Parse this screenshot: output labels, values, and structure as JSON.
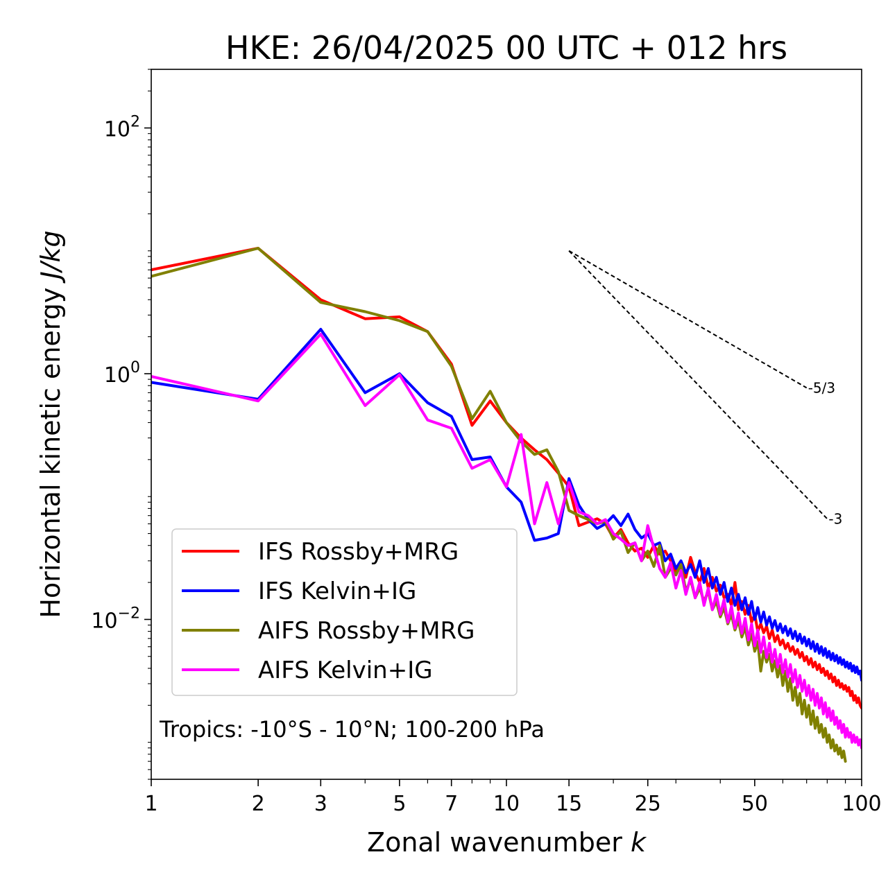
{
  "chart_data": {
    "type": "line",
    "title": "HKE: 26/04/2025 00 UTC + 012 hrs",
    "xlabel": "Zonal wavenumber",
    "xlabel_var": "k",
    "ylabel": "Horizontal kinetic energy",
    "ylabel_unit": "J/kg",
    "xscale": "log",
    "yscale": "log",
    "xlim": [
      1,
      100
    ],
    "ylim": [
      0.0005,
      300
    ],
    "x_ticks": [
      1,
      2,
      3,
      5,
      7,
      10,
      15,
      25,
      50,
      100
    ],
    "x_tick_labels": [
      "1",
      "2",
      "3",
      "5",
      "7",
      "10",
      "15",
      "25",
      "50",
      "100"
    ],
    "y_ticks": [
      {
        "value": 0.01,
        "base": "10",
        "exp": "−2"
      },
      {
        "value": 1,
        "base": "10",
        "exp": "0"
      },
      {
        "value": 100,
        "base": "10",
        "exp": "2"
      }
    ],
    "grid": false,
    "legend_position": "lower-left",
    "annotation": "Tropics: -10°S - 10°N; 100-200 hPa",
    "reference_lines": [
      {
        "label": "-5/3",
        "slope": -1.6667,
        "x0": 15,
        "y0": 10.0,
        "x1": 70
      },
      {
        "label": "-3",
        "slope": -3,
        "x0": 15,
        "y0": 10.0,
        "x1": 80
      }
    ],
    "series": [
      {
        "name": "IFS Rossby+MRG",
        "color": "#ff0000",
        "x": [
          1,
          2,
          3,
          4,
          5,
          6,
          7,
          8,
          9,
          10,
          11,
          12,
          13,
          14,
          15,
          16,
          17,
          18,
          19,
          20,
          21,
          22,
          23,
          24,
          25,
          26,
          27,
          28,
          29,
          30,
          31,
          32,
          33,
          34,
          35,
          36,
          37,
          38,
          39,
          40,
          41,
          42,
          43,
          44,
          45,
          46,
          47,
          48,
          49,
          50,
          51,
          52,
          53,
          54,
          55,
          56,
          57,
          58,
          59,
          60,
          61,
          62,
          63,
          64,
          65,
          66,
          67,
          68,
          69,
          70,
          71,
          72,
          73,
          74,
          75,
          76,
          77,
          78,
          79,
          80,
          81,
          82,
          83,
          84,
          85,
          86,
          87,
          88,
          89,
          90,
          91,
          92,
          93,
          94,
          95,
          96,
          97,
          98,
          99,
          100
        ],
        "y": [
          7.0,
          10.5,
          4.0,
          2.8,
          2.9,
          2.2,
          1.2,
          0.38,
          0.6,
          0.4,
          0.3,
          0.24,
          0.2,
          0.155,
          0.12,
          0.058,
          0.062,
          0.066,
          0.06,
          0.046,
          0.054,
          0.042,
          0.036,
          0.038,
          0.032,
          0.04,
          0.034,
          0.036,
          0.03,
          0.024,
          0.028,
          0.022,
          0.032,
          0.024,
          0.02,
          0.026,
          0.018,
          0.022,
          0.017,
          0.019,
          0.015,
          0.016,
          0.013,
          0.02,
          0.012,
          0.014,
          0.011,
          0.013,
          0.0095,
          0.011,
          0.008,
          0.0092,
          0.0078,
          0.0088,
          0.007,
          0.0082,
          0.0066,
          0.0074,
          0.0062,
          0.0068,
          0.0058,
          0.0064,
          0.0055,
          0.006,
          0.0052,
          0.0057,
          0.0049,
          0.0054,
          0.0046,
          0.005,
          0.0043,
          0.0048,
          0.0041,
          0.0045,
          0.0039,
          0.0043,
          0.0037,
          0.004,
          0.0035,
          0.0038,
          0.0033,
          0.0036,
          0.0031,
          0.0034,
          0.0029,
          0.0032,
          0.0028,
          0.003,
          0.0027,
          0.0029,
          0.0026,
          0.0028,
          0.0024,
          0.0026,
          0.0022,
          0.0024,
          0.0021,
          0.0023,
          0.002,
          0.0019
        ]
      },
      {
        "name": "IFS Kelvin+IG",
        "color": "#0000ff",
        "x": [
          1,
          2,
          3,
          4,
          5,
          6,
          7,
          8,
          9,
          10,
          11,
          12,
          13,
          14,
          15,
          16,
          17,
          18,
          19,
          20,
          21,
          22,
          23,
          24,
          25,
          26,
          27,
          28,
          29,
          30,
          31,
          32,
          33,
          34,
          35,
          36,
          37,
          38,
          39,
          40,
          41,
          42,
          43,
          44,
          45,
          46,
          47,
          48,
          49,
          50,
          51,
          52,
          53,
          54,
          55,
          56,
          57,
          58,
          59,
          60,
          61,
          62,
          63,
          64,
          65,
          66,
          67,
          68,
          69,
          70,
          71,
          72,
          73,
          74,
          75,
          76,
          77,
          78,
          79,
          80,
          81,
          82,
          83,
          84,
          85,
          86,
          87,
          88,
          89,
          90,
          91,
          92,
          93,
          94,
          95,
          96,
          97,
          98,
          99,
          100
        ],
        "y": [
          0.85,
          0.62,
          2.3,
          0.7,
          1.0,
          0.58,
          0.45,
          0.2,
          0.21,
          0.12,
          0.09,
          0.044,
          0.046,
          0.05,
          0.14,
          0.085,
          0.065,
          0.055,
          0.06,
          0.07,
          0.058,
          0.072,
          0.054,
          0.046,
          0.05,
          0.04,
          0.042,
          0.03,
          0.034,
          0.026,
          0.03,
          0.024,
          0.028,
          0.022,
          0.03,
          0.02,
          0.026,
          0.018,
          0.022,
          0.016,
          0.02,
          0.014,
          0.018,
          0.013,
          0.016,
          0.012,
          0.015,
          0.011,
          0.014,
          0.01,
          0.0125,
          0.0095,
          0.0115,
          0.009,
          0.0105,
          0.0085,
          0.0098,
          0.0081,
          0.0092,
          0.0078,
          0.0088,
          0.0074,
          0.0084,
          0.007,
          0.008,
          0.0067,
          0.0076,
          0.0064,
          0.0072,
          0.0061,
          0.0069,
          0.0058,
          0.0066,
          0.0055,
          0.0063,
          0.0053,
          0.006,
          0.0051,
          0.0058,
          0.0049,
          0.0055,
          0.0047,
          0.0053,
          0.0046,
          0.0051,
          0.0044,
          0.0049,
          0.0043,
          0.0047,
          0.0041,
          0.0045,
          0.004,
          0.0044,
          0.0038,
          0.0042,
          0.0037,
          0.0041,
          0.0036,
          0.0038,
          0.0032
        ]
      },
      {
        "name": "AIFS Rossby+MRG",
        "color": "#808000",
        "x": [
          1,
          2,
          3,
          4,
          5,
          6,
          7,
          8,
          9,
          10,
          11,
          12,
          13,
          14,
          15,
          16,
          17,
          18,
          19,
          20,
          21,
          22,
          23,
          24,
          25,
          26,
          27,
          28,
          29,
          30,
          31,
          32,
          33,
          34,
          35,
          36,
          37,
          38,
          39,
          40,
          41,
          42,
          43,
          44,
          45,
          46,
          47,
          48,
          49,
          50,
          51,
          52,
          53,
          54,
          55,
          56,
          57,
          58,
          59,
          60,
          61,
          62,
          63,
          64,
          65,
          66,
          67,
          68,
          69,
          70,
          71,
          72,
          73,
          74,
          75,
          76,
          77,
          78,
          79,
          80,
          81,
          82,
          83,
          84,
          85,
          86,
          87,
          88,
          89,
          90
        ],
        "y": [
          6.2,
          10.5,
          3.8,
          3.2,
          2.7,
          2.2,
          1.15,
          0.43,
          0.72,
          0.4,
          0.28,
          0.22,
          0.24,
          0.16,
          0.077,
          0.07,
          0.065,
          0.06,
          0.063,
          0.045,
          0.052,
          0.035,
          0.042,
          0.03,
          0.036,
          0.027,
          0.04,
          0.022,
          0.026,
          0.023,
          0.028,
          0.017,
          0.021,
          0.015,
          0.018,
          0.014,
          0.017,
          0.012,
          0.014,
          0.0105,
          0.0125,
          0.0092,
          0.011,
          0.0082,
          0.0098,
          0.0072,
          0.0086,
          0.0062,
          0.0076,
          0.0055,
          0.0066,
          0.0038,
          0.0055,
          0.0045,
          0.0052,
          0.0038,
          0.0046,
          0.0034,
          0.0042,
          0.0029,
          0.0038,
          0.0026,
          0.0033,
          0.0022,
          0.0028,
          0.002,
          0.0025,
          0.0017,
          0.0022,
          0.0016,
          0.002,
          0.0014,
          0.0018,
          0.0013,
          0.0016,
          0.0012,
          0.0014,
          0.0011,
          0.0013,
          0.001,
          0.00115,
          0.0009,
          0.00105,
          0.00085,
          0.00095,
          0.0008,
          0.0009,
          0.00075,
          0.00085,
          0.0007
        ]
      },
      {
        "name": "AIFS Kelvin+IG",
        "color": "#ff00ff",
        "x": [
          1,
          2,
          3,
          4,
          5,
          6,
          7,
          8,
          9,
          10,
          11,
          12,
          13,
          14,
          15,
          16,
          17,
          18,
          19,
          20,
          21,
          22,
          23,
          24,
          25,
          26,
          27,
          28,
          29,
          30,
          31,
          32,
          33,
          34,
          35,
          36,
          37,
          38,
          39,
          40,
          41,
          42,
          43,
          44,
          45,
          46,
          47,
          48,
          49,
          50,
          51,
          52,
          53,
          54,
          55,
          56,
          57,
          58,
          59,
          60,
          61,
          62,
          63,
          64,
          65,
          66,
          67,
          68,
          69,
          70,
          71,
          72,
          73,
          74,
          75,
          76,
          77,
          78,
          79,
          80,
          81,
          82,
          83,
          84,
          85,
          86,
          87,
          88,
          89,
          90,
          91,
          92,
          93,
          94,
          95,
          96,
          97,
          98,
          99,
          100
        ],
        "y": [
          0.95,
          0.6,
          2.1,
          0.55,
          0.98,
          0.42,
          0.36,
          0.17,
          0.2,
          0.12,
          0.32,
          0.06,
          0.13,
          0.06,
          0.13,
          0.075,
          0.07,
          0.06,
          0.065,
          0.05,
          0.045,
          0.04,
          0.042,
          0.03,
          0.058,
          0.038,
          0.026,
          0.022,
          0.029,
          0.018,
          0.025,
          0.016,
          0.022,
          0.015,
          0.02,
          0.013,
          0.018,
          0.012,
          0.016,
          0.011,
          0.0145,
          0.0095,
          0.0128,
          0.0085,
          0.0113,
          0.0077,
          0.0102,
          0.0068,
          0.0092,
          0.0061,
          0.0082,
          0.0054,
          0.0072,
          0.0049,
          0.0064,
          0.0045,
          0.0057,
          0.0041,
          0.0052,
          0.0037,
          0.0047,
          0.0034,
          0.0043,
          0.0031,
          0.0039,
          0.0028,
          0.0035,
          0.0026,
          0.0032,
          0.0024,
          0.0029,
          0.0022,
          0.0027,
          0.002,
          0.0025,
          0.0019,
          0.0023,
          0.0017,
          0.0021,
          0.0016,
          0.0019,
          0.0015,
          0.0018,
          0.0014,
          0.0016,
          0.0013,
          0.0015,
          0.0012,
          0.0014,
          0.0011,
          0.0013,
          0.0011,
          0.0012,
          0.001,
          0.00115,
          0.001,
          0.0011,
          0.00095,
          0.00105,
          0.0009
        ]
      }
    ]
  }
}
